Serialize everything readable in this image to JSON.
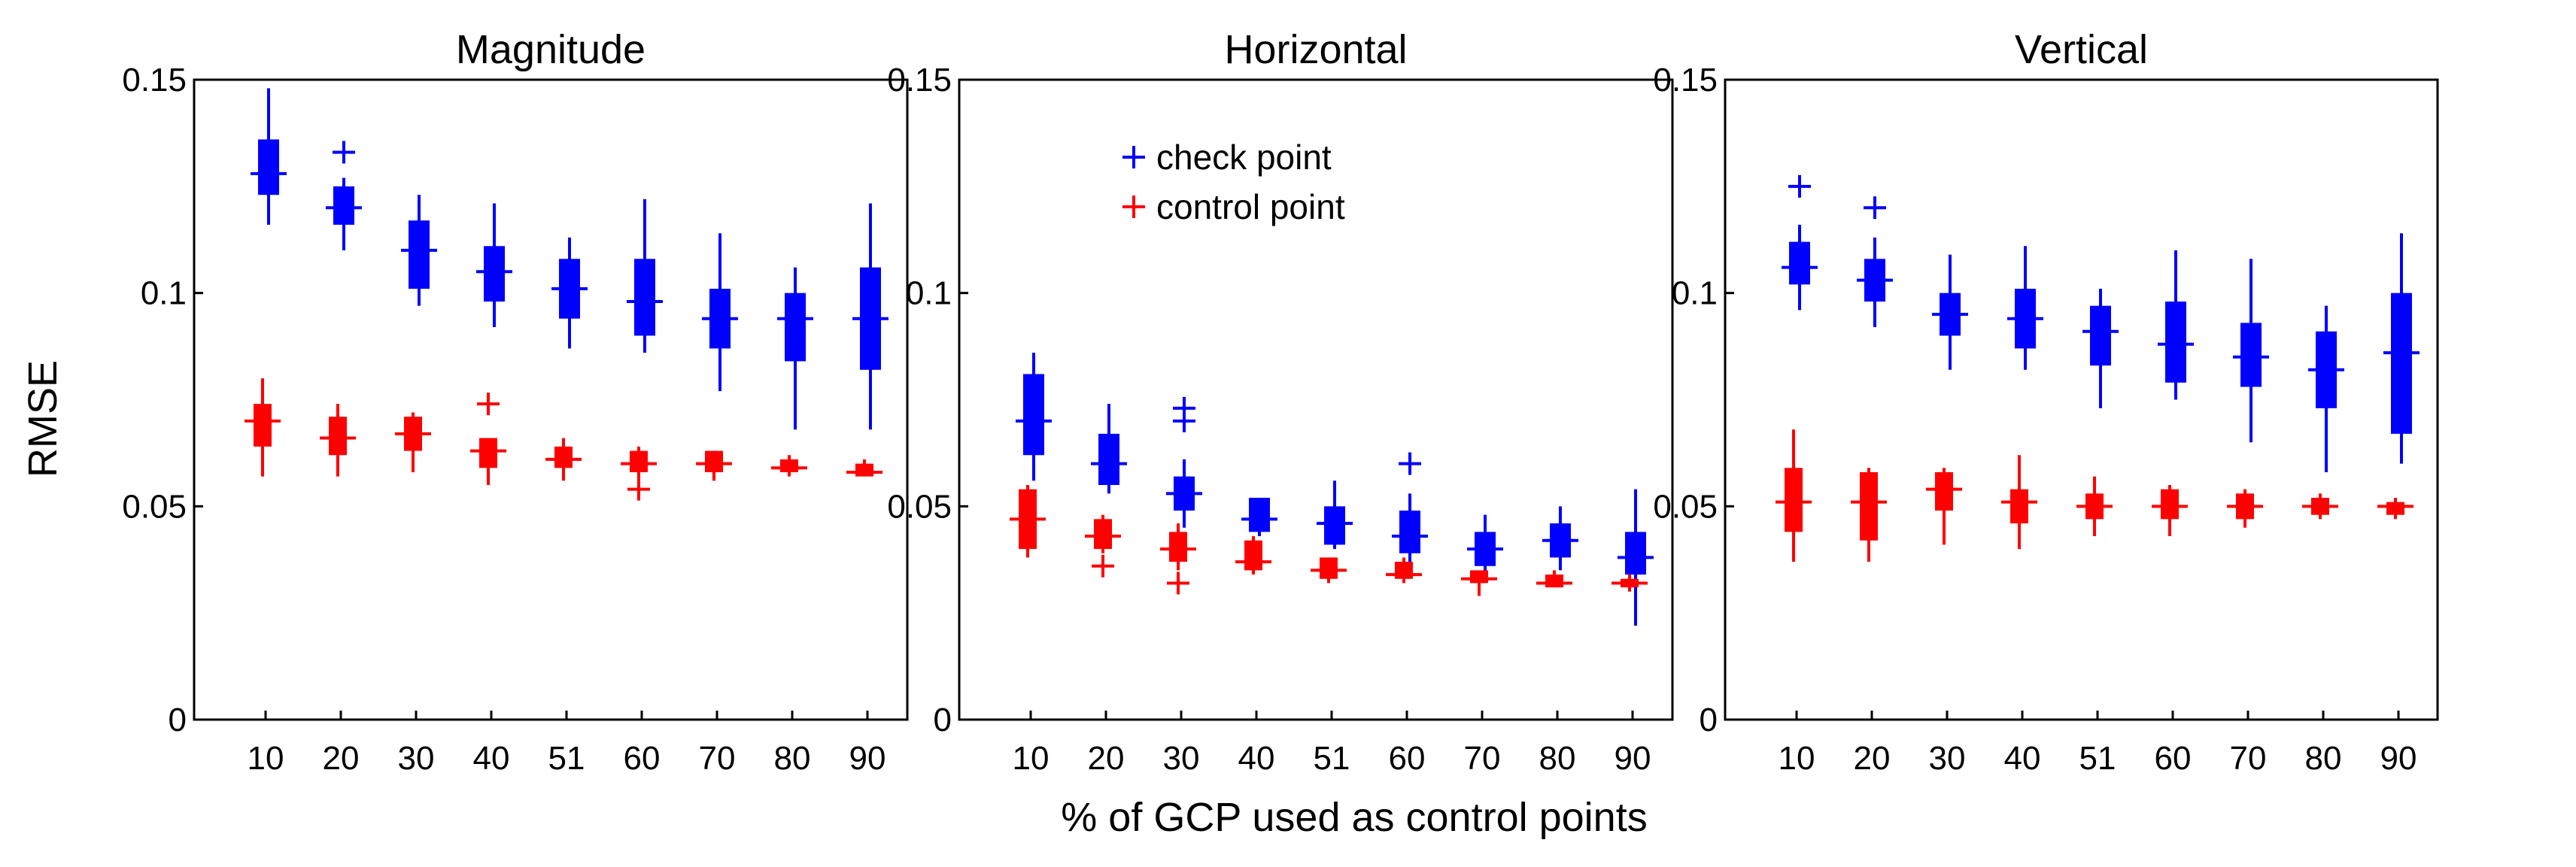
{
  "figure": {
    "ylabel": "RMSE",
    "xlabel": "% of GCP used as control points",
    "colors": {
      "check": "#0000ff",
      "control": "#ff0000",
      "axis": "#000000"
    }
  },
  "legend": {
    "location": "top-center of Horizontal panel",
    "entries": [
      {
        "key": "check",
        "label": "check point",
        "color": "#0000ff"
      },
      {
        "key": "control",
        "label": "control point",
        "color": "#ff0000"
      }
    ]
  },
  "chart_data": [
    {
      "type": "box",
      "title": "Magnitude",
      "xlabel": "",
      "ylabel": "RMSE",
      "categories": [
        "10",
        "20",
        "30",
        "40",
        "51",
        "60",
        "70",
        "80",
        "90"
      ],
      "ylim": [
        0,
        0.15
      ],
      "yticks": [
        "0",
        "0.05",
        "0.1",
        "0.15"
      ],
      "series": [
        {
          "name": "check point",
          "color": "#0000ff",
          "median": [
            0.128,
            0.12,
            0.11,
            0.105,
            0.101,
            0.098,
            0.094,
            0.094,
            0.094
          ],
          "q1": [
            0.123,
            0.116,
            0.101,
            0.098,
            0.094,
            0.09,
            0.087,
            0.084,
            0.082
          ],
          "q3": [
            0.136,
            0.125,
            0.117,
            0.111,
            0.108,
            0.108,
            0.101,
            0.1,
            0.106
          ],
          "whisker_low": [
            0.116,
            0.11,
            0.097,
            0.092,
            0.087,
            0.086,
            0.077,
            0.068,
            0.068
          ],
          "whisker_high": [
            0.148,
            0.127,
            0.123,
            0.121,
            0.113,
            0.122,
            0.114,
            0.106,
            0.121
          ],
          "outliers": [
            [],
            [
              0.133
            ],
            [],
            [],
            [],
            [],
            [],
            [],
            []
          ]
        },
        {
          "name": "control point",
          "color": "#ff0000",
          "median": [
            0.07,
            0.066,
            0.067,
            0.063,
            0.061,
            0.06,
            0.06,
            0.059,
            0.058
          ],
          "q1": [
            0.064,
            0.062,
            0.063,
            0.059,
            0.059,
            0.058,
            0.058,
            0.058,
            0.057
          ],
          "q3": [
            0.074,
            0.071,
            0.071,
            0.066,
            0.064,
            0.063,
            0.063,
            0.061,
            0.06
          ],
          "whisker_low": [
            0.057,
            0.057,
            0.058,
            0.055,
            0.056,
            0.056,
            0.056,
            0.057,
            0.057
          ],
          "whisker_high": [
            0.08,
            0.074,
            0.072,
            0.066,
            0.066,
            0.064,
            0.063,
            0.062,
            0.061
          ],
          "outliers": [
            [],
            [],
            [],
            [
              0.074
            ],
            [],
            [
              0.054
            ],
            [],
            [],
            []
          ]
        }
      ]
    },
    {
      "type": "box",
      "title": "Horizontal",
      "xlabel": "",
      "ylabel": "",
      "categories": [
        "10",
        "20",
        "30",
        "40",
        "51",
        "60",
        "70",
        "80",
        "90"
      ],
      "ylim": [
        0,
        0.15
      ],
      "yticks": [
        "0",
        "0.05",
        "0.1",
        "0.15"
      ],
      "series": [
        {
          "name": "check point",
          "color": "#0000ff",
          "median": [
            0.07,
            0.06,
            0.053,
            0.047,
            0.046,
            0.043,
            0.04,
            0.042,
            0.038
          ],
          "q1": [
            0.062,
            0.055,
            0.049,
            0.044,
            0.041,
            0.039,
            0.036,
            0.038,
            0.034
          ],
          "q3": [
            0.081,
            0.067,
            0.057,
            0.052,
            0.05,
            0.049,
            0.044,
            0.046,
            0.044
          ],
          "whisker_low": [
            0.056,
            0.053,
            0.045,
            0.043,
            0.04,
            0.035,
            0.033,
            0.035,
            0.022
          ],
          "whisker_high": [
            0.086,
            0.074,
            0.061,
            0.052,
            0.056,
            0.053,
            0.048,
            0.05,
            0.054
          ],
          "outliers": [
            [],
            [],
            [
              0.07,
              0.073
            ],
            [],
            [],
            [
              0.06
            ],
            [],
            [],
            []
          ]
        },
        {
          "name": "control point",
          "color": "#ff0000",
          "median": [
            0.047,
            0.043,
            0.04,
            0.037,
            0.035,
            0.034,
            0.033,
            0.032,
            0.032
          ],
          "q1": [
            0.04,
            0.04,
            0.037,
            0.035,
            0.033,
            0.033,
            0.032,
            0.031,
            0.031
          ],
          "q3": [
            0.054,
            0.047,
            0.044,
            0.042,
            0.038,
            0.037,
            0.035,
            0.034,
            0.033
          ],
          "whisker_low": [
            0.038,
            0.039,
            0.035,
            0.034,
            0.032,
            0.032,
            0.029,
            0.031,
            0.03
          ],
          "whisker_high": [
            0.055,
            0.048,
            0.046,
            0.043,
            0.038,
            0.038,
            0.035,
            0.035,
            0.034
          ],
          "outliers": [
            [],
            [
              0.036
            ],
            [
              0.032
            ],
            [],
            [],
            [],
            [],
            [],
            []
          ]
        }
      ]
    },
    {
      "type": "box",
      "title": "Vertical",
      "xlabel": "",
      "ylabel": "",
      "categories": [
        "10",
        "20",
        "30",
        "40",
        "51",
        "60",
        "70",
        "80",
        "90"
      ],
      "ylim": [
        0,
        0.15
      ],
      "yticks": [
        "0",
        "0.05",
        "0.1",
        "0.15"
      ],
      "series": [
        {
          "name": "check point",
          "color": "#0000ff",
          "median": [
            0.106,
            0.103,
            0.095,
            0.094,
            0.091,
            0.088,
            0.085,
            0.082,
            0.086
          ],
          "q1": [
            0.102,
            0.098,
            0.09,
            0.087,
            0.083,
            0.079,
            0.078,
            0.073,
            0.067
          ],
          "q3": [
            0.112,
            0.108,
            0.1,
            0.101,
            0.097,
            0.098,
            0.093,
            0.091,
            0.1
          ],
          "whisker_low": [
            0.096,
            0.092,
            0.082,
            0.082,
            0.073,
            0.075,
            0.065,
            0.058,
            0.06
          ],
          "whisker_high": [
            0.116,
            0.113,
            0.109,
            0.111,
            0.101,
            0.11,
            0.108,
            0.097,
            0.114
          ],
          "outliers": [
            [
              0.125
            ],
            [
              0.12
            ],
            [],
            [],
            [],
            [],
            [],
            [],
            []
          ]
        },
        {
          "name": "control point",
          "color": "#ff0000",
          "median": [
            0.051,
            0.051,
            0.054,
            0.051,
            0.05,
            0.05,
            0.05,
            0.05,
            0.05
          ],
          "q1": [
            0.044,
            0.042,
            0.049,
            0.046,
            0.047,
            0.047,
            0.047,
            0.048,
            0.048
          ],
          "q3": [
            0.059,
            0.058,
            0.058,
            0.054,
            0.053,
            0.054,
            0.053,
            0.052,
            0.051
          ],
          "whisker_low": [
            0.037,
            0.037,
            0.041,
            0.04,
            0.043,
            0.043,
            0.045,
            0.047,
            0.047
          ],
          "whisker_high": [
            0.068,
            0.059,
            0.059,
            0.062,
            0.057,
            0.055,
            0.054,
            0.053,
            0.052
          ],
          "outliers": [
            [],
            [],
            [],
            [],
            [],
            [],
            [],
            [],
            []
          ]
        }
      ]
    }
  ]
}
